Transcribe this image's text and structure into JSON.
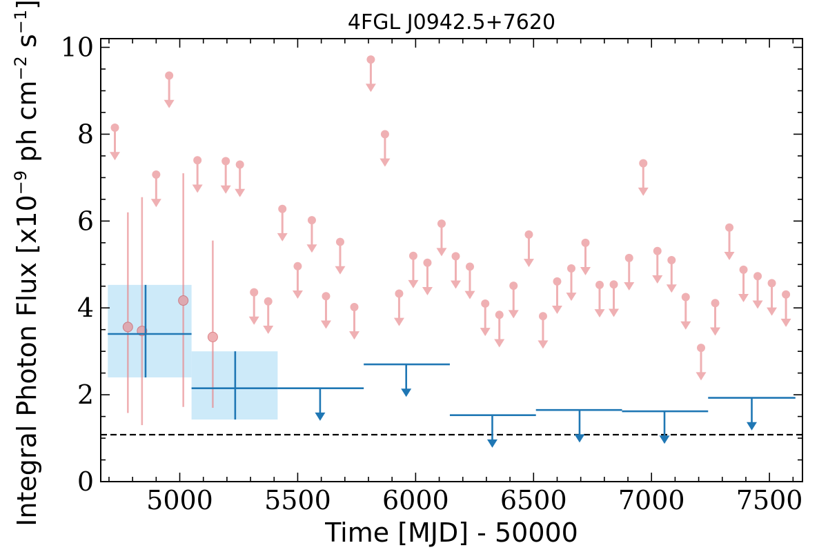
{
  "chart_data": {
    "type": "scatter",
    "title": "4FGL J0942.5+7620",
    "xlabel": "Time [MJD] - 50000",
    "ylabel_main": "Integral Photon Flux [x10",
    "ylabel_exp1": "−9",
    "ylabel_mid": " ph cm",
    "ylabel_exp2": "−2",
    "ylabel_s": " s",
    "ylabel_exp3": "−1",
    "ylabel_end": "]",
    "xlim": [
      4665,
      7640
    ],
    "ylim": [
      0,
      10.2
    ],
    "x_ticks": [
      5000,
      5500,
      6000,
      6500,
      7000,
      7500
    ],
    "x_tick_labels": [
      "5000",
      "5500",
      "6000",
      "6500",
      "7000",
      "7500"
    ],
    "y_ticks": [
      0,
      2,
      4,
      6,
      8,
      10
    ],
    "y_tick_labels": [
      "0",
      "2",
      "4",
      "6",
      "8",
      "10"
    ],
    "reference_level": 1.08,
    "colors": {
      "fine": "#e8878b",
      "coarse": "#1f77b4",
      "coarse_band": "#cdeaf9",
      "reference": "#000000"
    },
    "fine_detections": [
      {
        "x": 4780,
        "y": 3.56,
        "ylow": 1.58,
        "yhigh": 6.2
      },
      {
        "x": 4840,
        "y": 3.47,
        "ylow": 1.3,
        "yhigh": 6.55
      },
      {
        "x": 5015,
        "y": 4.17,
        "ylow": 1.72,
        "yhigh": 7.1
      },
      {
        "x": 5140,
        "y": 3.33,
        "ylow": 1.7,
        "yhigh": 5.55
      }
    ],
    "fine_upper_limits": [
      {
        "x": 4725,
        "y": 8.15
      },
      {
        "x": 4900,
        "y": 7.07
      },
      {
        "x": 4955,
        "y": 9.35
      },
      {
        "x": 5075,
        "y": 7.4
      },
      {
        "x": 5195,
        "y": 7.38
      },
      {
        "x": 5255,
        "y": 7.3
      },
      {
        "x": 5315,
        "y": 4.36
      },
      {
        "x": 5375,
        "y": 4.15
      },
      {
        "x": 5435,
        "y": 6.28
      },
      {
        "x": 5500,
        "y": 4.96
      },
      {
        "x": 5560,
        "y": 6.02
      },
      {
        "x": 5620,
        "y": 4.27
      },
      {
        "x": 5680,
        "y": 5.52
      },
      {
        "x": 5740,
        "y": 4.02
      },
      {
        "x": 5810,
        "y": 9.72
      },
      {
        "x": 5870,
        "y": 8.0
      },
      {
        "x": 5930,
        "y": 4.33
      },
      {
        "x": 5990,
        "y": 5.2
      },
      {
        "x": 6050,
        "y": 5.04
      },
      {
        "x": 6110,
        "y": 5.94
      },
      {
        "x": 6170,
        "y": 5.19
      },
      {
        "x": 6230,
        "y": 4.95
      },
      {
        "x": 6295,
        "y": 4.1
      },
      {
        "x": 6355,
        "y": 3.84
      },
      {
        "x": 6415,
        "y": 4.51
      },
      {
        "x": 6480,
        "y": 5.69
      },
      {
        "x": 6540,
        "y": 3.81
      },
      {
        "x": 6600,
        "y": 4.61
      },
      {
        "x": 6660,
        "y": 4.91
      },
      {
        "x": 6720,
        "y": 5.5
      },
      {
        "x": 6780,
        "y": 4.53
      },
      {
        "x": 6840,
        "y": 4.54
      },
      {
        "x": 6905,
        "y": 5.15
      },
      {
        "x": 6965,
        "y": 7.33
      },
      {
        "x": 7025,
        "y": 5.31
      },
      {
        "x": 7085,
        "y": 5.1
      },
      {
        "x": 7145,
        "y": 4.25
      },
      {
        "x": 7210,
        "y": 3.08
      },
      {
        "x": 7270,
        "y": 4.11
      },
      {
        "x": 7330,
        "y": 5.85
      },
      {
        "x": 7390,
        "y": 4.88
      },
      {
        "x": 7450,
        "y": 4.73
      },
      {
        "x": 7510,
        "y": 4.57
      },
      {
        "x": 7570,
        "y": 4.31
      }
    ],
    "coarse_detections": [
      {
        "x0": 4695,
        "x1": 5050,
        "xc": 4855,
        "y": 3.4,
        "ylow": 2.4,
        "yhigh": 4.53
      },
      {
        "x0": 5050,
        "x1": 5415,
        "xc": 5235,
        "y": 2.15,
        "ylow": 1.43,
        "yhigh": 3.0
      }
    ],
    "coarse_upper_limits": [
      {
        "x0": 5415,
        "x1": 5780,
        "xc": 5595,
        "y": 2.15
      },
      {
        "x0": 5780,
        "x1": 6145,
        "xc": 5960,
        "y": 2.7
      },
      {
        "x0": 6145,
        "x1": 6510,
        "xc": 6325,
        "y": 1.53
      },
      {
        "x0": 6510,
        "x1": 6875,
        "xc": 6695,
        "y": 1.65
      },
      {
        "x0": 6875,
        "x1": 7240,
        "xc": 7055,
        "y": 1.62
      },
      {
        "x0": 7240,
        "x1": 7610,
        "xc": 7425,
        "y": 1.93
      }
    ]
  }
}
